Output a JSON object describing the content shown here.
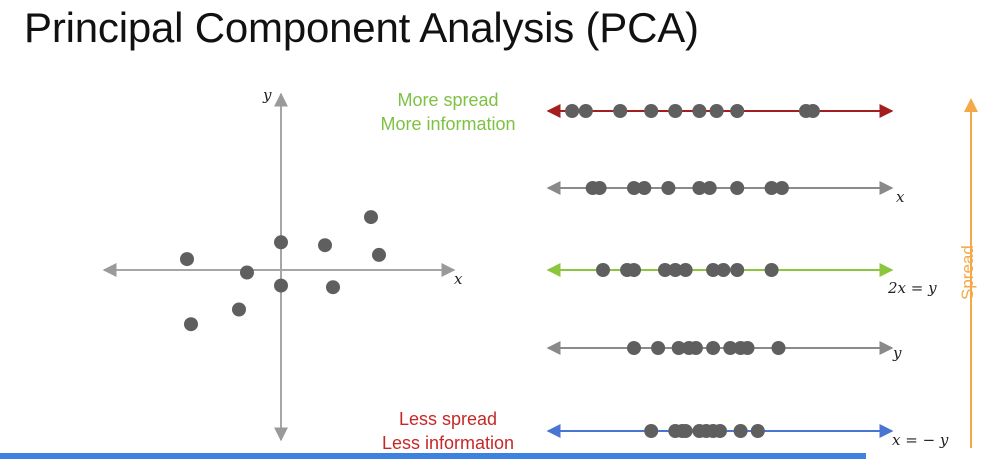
{
  "title": "Principal Component Analysis (PCA)",
  "scatter": {
    "x_axis_label": "x",
    "y_axis_label": "y",
    "points": [
      {
        "x": -2.35,
        "y": 0.45
      },
      {
        "x": -2.25,
        "y": -1.1
      },
      {
        "x": -1.05,
        "y": -0.75
      },
      {
        "x": -0.85,
        "y": 0.13
      },
      {
        "x": 0.0,
        "y": 0.85
      },
      {
        "x": 0.0,
        "y": -0.18
      },
      {
        "x": 1.1,
        "y": 0.78
      },
      {
        "x": 1.3,
        "y": -0.22
      },
      {
        "x": 2.25,
        "y": 1.45
      },
      {
        "x": 2.45,
        "y": 0.55
      }
    ]
  },
  "projections": [
    {
      "label": "",
      "color": "#a31f1f",
      "positions": [
        0.07,
        0.11,
        0.21,
        0.3,
        0.37,
        0.44,
        0.49,
        0.55,
        0.75,
        0.77
      ]
    },
    {
      "label": "x",
      "color": "#8a8a8a",
      "positions": [
        0.13,
        0.15,
        0.25,
        0.28,
        0.35,
        0.44,
        0.47,
        0.55,
        0.65,
        0.68
      ]
    },
    {
      "label": "2x = y",
      "color": "#8cc63f",
      "positions": [
        0.16,
        0.23,
        0.25,
        0.34,
        0.37,
        0.4,
        0.48,
        0.51,
        0.55,
        0.65
      ]
    },
    {
      "label": "y",
      "color": "#8a8a8a",
      "positions": [
        0.25,
        0.32,
        0.38,
        0.41,
        0.43,
        0.48,
        0.53,
        0.56,
        0.58,
        0.67
      ]
    },
    {
      "label": "x = − y",
      "color": "#4a74d4",
      "positions": [
        0.3,
        0.37,
        0.39,
        0.4,
        0.44,
        0.46,
        0.48,
        0.5,
        0.56,
        0.61
      ]
    }
  ],
  "top_label": {
    "line1": "More spread",
    "line2": "More information",
    "color": "#7dc242"
  },
  "bottom_label": {
    "line1": "Less spread",
    "line2": "Less information",
    "color": "#c62828"
  },
  "spread_axis": {
    "label": "Spread",
    "color": "#f5a848"
  },
  "point_color": "#5f5f5f"
}
